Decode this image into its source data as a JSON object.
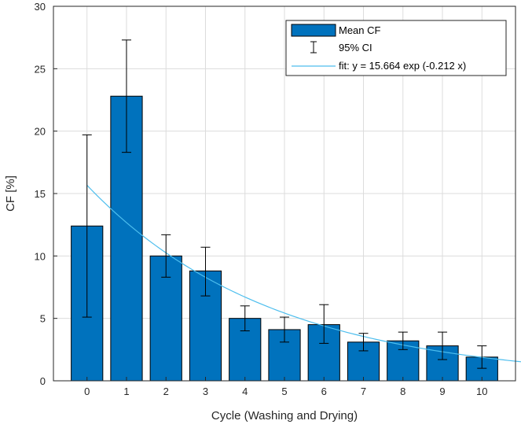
{
  "chart_data": {
    "type": "bar",
    "title": "",
    "xlabel": "Cycle (Washing and Drying)",
    "ylabel": "CF [%]",
    "xlim": [
      -0.85,
      10.85
    ],
    "ylim": [
      0,
      30
    ],
    "x_ticks": [
      0,
      1,
      2,
      3,
      4,
      5,
      6,
      7,
      8,
      9,
      10
    ],
    "y_ticks": [
      0,
      5,
      10,
      15,
      20,
      25,
      30
    ],
    "grid": true,
    "legend_position": "top-right",
    "categories": [
      0,
      1,
      2,
      3,
      4,
      5,
      6,
      7,
      8,
      9,
      10
    ],
    "series": [
      {
        "name": "Mean CF",
        "kind": "bar",
        "color": "#0072BD",
        "values": [
          12.4,
          22.8,
          10.0,
          8.8,
          5.0,
          4.1,
          4.5,
          3.1,
          3.2,
          2.8,
          1.9
        ]
      },
      {
        "name": "95% CI",
        "kind": "errorbar",
        "color": "#000000",
        "lower": [
          5.1,
          18.3,
          8.3,
          6.8,
          4.0,
          3.1,
          3.0,
          2.4,
          2.5,
          1.7,
          1.0
        ],
        "upper": [
          19.7,
          27.3,
          11.7,
          10.7,
          6.0,
          5.1,
          6.1,
          3.8,
          3.9,
          3.9,
          2.8
        ]
      },
      {
        "name": "fit: y = 15.664 exp (-0.212 x)",
        "kind": "line",
        "color": "#4DBEEE",
        "a": 15.664,
        "b": -0.212,
        "x_range": [
          0,
          11
        ]
      }
    ]
  }
}
